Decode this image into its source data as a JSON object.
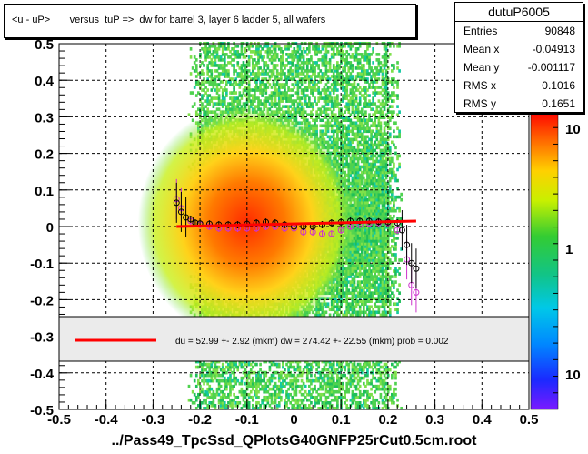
{
  "title": "<u - uP>       versus  tuP =>  dw for barrel 3, layer 6 ladder 5, all wafers",
  "stats": {
    "name": "dutuP6005",
    "rows": [
      {
        "label": "Entries",
        "value": "90848"
      },
      {
        "label": "Mean x",
        "value": "-0.04913"
      },
      {
        "label": "Mean y",
        "value": "-0.001117"
      },
      {
        "label": "RMS x",
        "value": "0.1016"
      },
      {
        "label": "RMS y",
        "value": "0.1651"
      }
    ]
  },
  "fit_legend": "du =   52.99 +-  2.92 (mkm) dw =  274.42 +- 22.55 (mkm) prob = 0.002",
  "footer": "../Pass49_TpcSsd_QPlotsG40GNFP25rCut0.5cm.root",
  "colors": {
    "fit_line": "#ff0000",
    "profile_black": "#000000",
    "profile_magenta": "#cc33cc",
    "legend_bg": "#ebebeb"
  },
  "chart_data": {
    "type": "heatmap",
    "x_range": [
      -0.5,
      0.5
    ],
    "y_range": [
      -0.5,
      0.5
    ],
    "x_ticks": [
      "-0.5",
      "-0.4",
      "-0.3",
      "-0.2",
      "-0.1",
      "0",
      "0.1",
      "0.2",
      "0.3",
      "0.4",
      "0.5"
    ],
    "y_ticks": [
      "0.5",
      "0.4",
      "0.3",
      "0.2",
      "0.1",
      "0",
      "-0.1",
      "-0.2",
      "-0.3",
      "-0.4",
      "-0.5"
    ],
    "colorbar_labels": [
      "10",
      "1",
      "10"
    ],
    "colorbar_scale": "log",
    "grid": true,
    "density_x_range": [
      -0.23,
      0.23
    ],
    "core": {
      "x": -0.1,
      "y": 0.01
    },
    "fit_line": {
      "x": [
        -0.25,
        0.26
      ],
      "y": [
        0.0,
        0.015
      ]
    },
    "profile_black": {
      "x": [
        -0.25,
        -0.24,
        -0.23,
        -0.22,
        -0.21,
        -0.2,
        -0.18,
        -0.16,
        -0.14,
        -0.12,
        -0.1,
        -0.08,
        -0.06,
        -0.04,
        -0.02,
        0.0,
        0.02,
        0.04,
        0.06,
        0.08,
        0.1,
        0.12,
        0.14,
        0.16,
        0.18,
        0.2,
        0.22,
        0.23,
        0.24,
        0.25,
        0.26
      ],
      "y": [
        0.065,
        0.04,
        0.025,
        0.02,
        0.01,
        0.008,
        0.007,
        0.005,
        0.005,
        0.005,
        0.007,
        0.01,
        0.012,
        0.01,
        0.005,
        0.0,
        0.0,
        0.0,
        0.005,
        0.01,
        0.012,
        0.015,
        0.015,
        0.015,
        0.013,
        0.012,
        0.01,
        -0.01,
        -0.05,
        -0.1,
        -0.115
      ]
    },
    "profile_magenta": {
      "x": [
        -0.25,
        -0.24,
        -0.22,
        -0.2,
        -0.18,
        -0.16,
        -0.14,
        -0.12,
        -0.1,
        -0.08,
        -0.06,
        -0.04,
        -0.02,
        0.0,
        0.02,
        0.04,
        0.06,
        0.08,
        0.1,
        0.12,
        0.14,
        0.16,
        0.18,
        0.2,
        0.22,
        0.24,
        0.25,
        0.26
      ],
      "y": [
        0.075,
        0.05,
        0.015,
        0.005,
        0.0,
        -0.005,
        -0.005,
        -0.005,
        -0.005,
        -0.005,
        0.0,
        0.0,
        -0.005,
        -0.005,
        -0.015,
        -0.015,
        -0.02,
        -0.02,
        -0.01,
        0.0,
        0.005,
        0.008,
        0.01,
        0.01,
        -0.01,
        -0.09,
        -0.16,
        -0.18
      ]
    }
  }
}
